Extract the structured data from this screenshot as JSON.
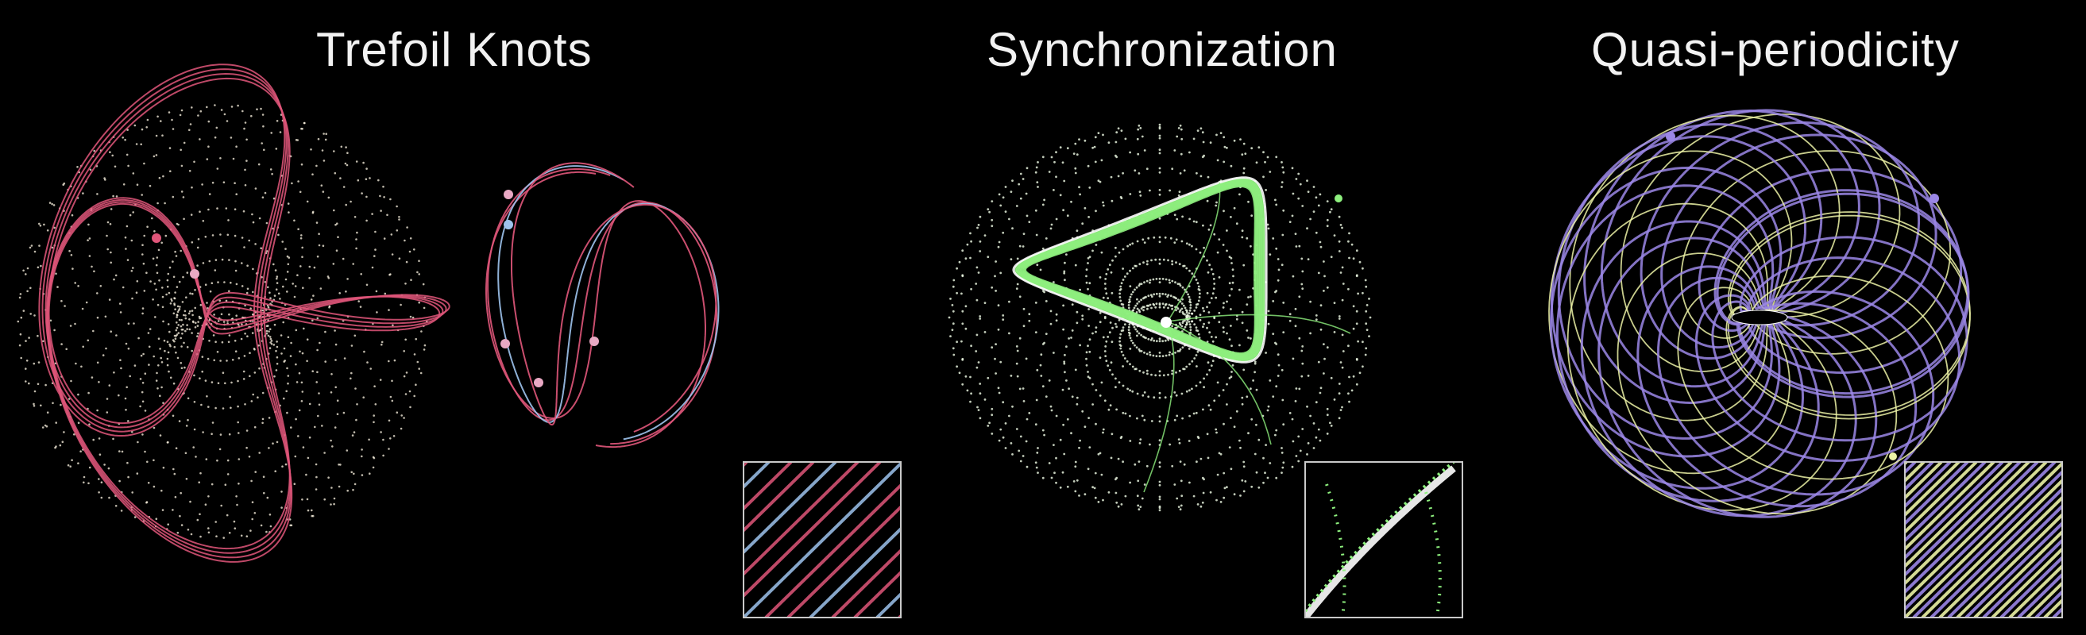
{
  "panels": [
    {
      "id": "trefoil",
      "title": "Trefoil Knots",
      "colors": {
        "curve": "#e0567a",
        "curve_alt": "#9ec4ee",
        "dots": "#fff7e4"
      }
    },
    {
      "id": "sync",
      "title": "Synchronization",
      "colors": {
        "curve": "#8ef07e",
        "curve_alt": "#ffffff",
        "dots": "#f2ffe8"
      }
    },
    {
      "id": "quasi",
      "title": "Quasi-periodicity",
      "colors": {
        "curve": "#9b87e6",
        "curve_alt": "#ecf2a6",
        "dots": "#ffffff"
      }
    }
  ],
  "inset_border_color": "#c9c9c9"
}
